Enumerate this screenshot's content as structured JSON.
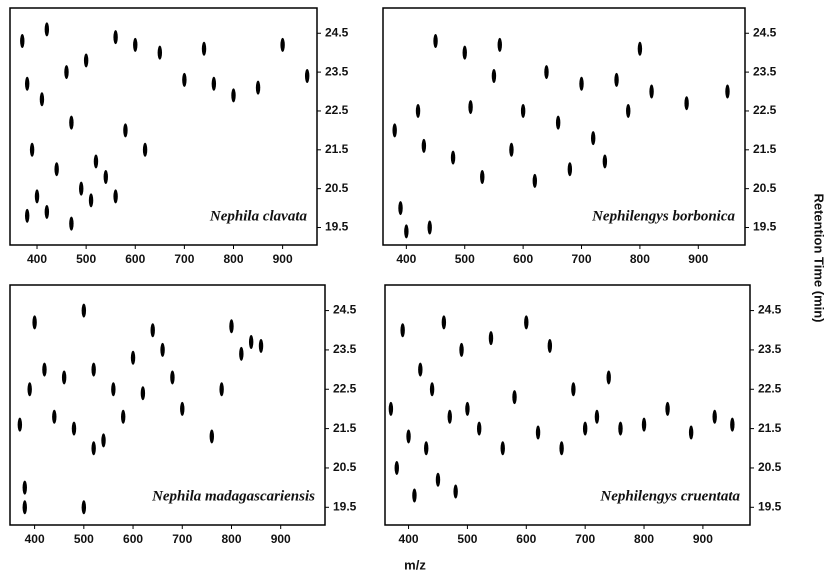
{
  "x_label": "m/z",
  "y_label": "Retention Time (min)",
  "chart_data": [
    {
      "type": "scatter",
      "title": "Nephila clavata",
      "color": "#000000",
      "x": [
        370,
        380,
        390,
        400,
        410,
        420,
        440,
        460,
        470,
        490,
        500,
        520,
        540,
        560,
        580,
        600,
        620,
        650,
        700,
        740,
        760,
        800,
        850,
        900,
        950,
        380,
        420,
        470,
        510,
        560
      ],
      "y": [
        24.3,
        23.2,
        21.5,
        20.3,
        22.8,
        24.6,
        21.0,
        23.5,
        22.2,
        20.5,
        23.8,
        21.2,
        20.8,
        24.4,
        22.0,
        24.2,
        21.5,
        24.0,
        23.3,
        24.1,
        23.2,
        22.9,
        23.1,
        24.2,
        23.4,
        19.8,
        19.9,
        19.6,
        20.2,
        20.3
      ],
      "xlim": [
        345,
        970
      ],
      "ylim": [
        19.05,
        25.15
      ],
      "xticks": [
        400,
        500,
        600,
        700,
        800,
        900
      ],
      "yticks": [
        19.5,
        20.5,
        21.5,
        22.5,
        23.5,
        24.5
      ]
    },
    {
      "type": "scatter",
      "title": "Nephilengys borbonica",
      "color": "#000000",
      "x": [
        380,
        390,
        420,
        440,
        450,
        480,
        500,
        510,
        530,
        550,
        560,
        580,
        600,
        620,
        640,
        660,
        680,
        700,
        720,
        740,
        760,
        780,
        800,
        820,
        880,
        950,
        400,
        430
      ],
      "y": [
        22.0,
        20.0,
        22.5,
        19.5,
        24.3,
        21.3,
        24.0,
        22.6,
        20.8,
        23.4,
        24.2,
        21.5,
        22.5,
        20.7,
        23.5,
        22.2,
        21.0,
        23.2,
        21.8,
        21.2,
        23.3,
        22.5,
        24.1,
        23.0,
        22.7,
        23.0,
        19.4,
        21.6
      ],
      "xlim": [
        360,
        980
      ],
      "ylim": [
        19.05,
        25.15
      ],
      "xticks": [
        400,
        500,
        600,
        700,
        800,
        900
      ],
      "yticks": [
        19.5,
        20.5,
        21.5,
        22.5,
        23.5,
        24.5
      ]
    },
    {
      "type": "scatter",
      "title": "Nephila madagascariensis",
      "color": "#000000",
      "x": [
        370,
        380,
        390,
        400,
        420,
        440,
        460,
        480,
        500,
        520,
        540,
        560,
        580,
        600,
        620,
        640,
        660,
        680,
        700,
        760,
        780,
        800,
        820,
        840,
        860,
        380,
        500,
        520
      ],
      "y": [
        21.6,
        20.0,
        22.5,
        24.2,
        23.0,
        21.8,
        22.8,
        21.5,
        24.5,
        23.0,
        21.2,
        22.5,
        21.8,
        23.3,
        22.4,
        24.0,
        23.5,
        22.8,
        22.0,
        21.3,
        22.5,
        24.1,
        23.4,
        23.7,
        23.6,
        19.5,
        19.5,
        21.0
      ],
      "xlim": [
        350,
        990
      ],
      "ylim": [
        19.05,
        25.15
      ],
      "xticks": [
        400,
        500,
        600,
        700,
        800,
        900
      ],
      "yticks": [
        19.5,
        20.5,
        21.5,
        22.5,
        23.5,
        24.5
      ]
    },
    {
      "type": "scatter",
      "title": "Nephilengys cruentata",
      "color": "#000000",
      "x": [
        370,
        380,
        390,
        400,
        410,
        420,
        430,
        440,
        450,
        460,
        470,
        480,
        490,
        500,
        520,
        540,
        560,
        580,
        600,
        620,
        640,
        660,
        680,
        700,
        720,
        740,
        760,
        800,
        840,
        880,
        920,
        950
      ],
      "y": [
        22.0,
        20.5,
        24.0,
        21.3,
        19.8,
        23.0,
        21.0,
        22.5,
        20.2,
        24.2,
        21.8,
        19.9,
        23.5,
        22.0,
        21.5,
        23.8,
        21.0,
        22.3,
        24.2,
        21.4,
        23.6,
        21.0,
        22.5,
        21.5,
        21.8,
        22.8,
        21.5,
        21.6,
        22.0,
        21.4,
        21.8,
        21.6
      ],
      "xlim": [
        360,
        980
      ],
      "ylim": [
        19.05,
        25.15
      ],
      "xticks": [
        400,
        500,
        600,
        700,
        800,
        900
      ],
      "yticks": [
        19.5,
        20.5,
        21.5,
        22.5,
        23.5,
        24.5
      ]
    }
  ]
}
